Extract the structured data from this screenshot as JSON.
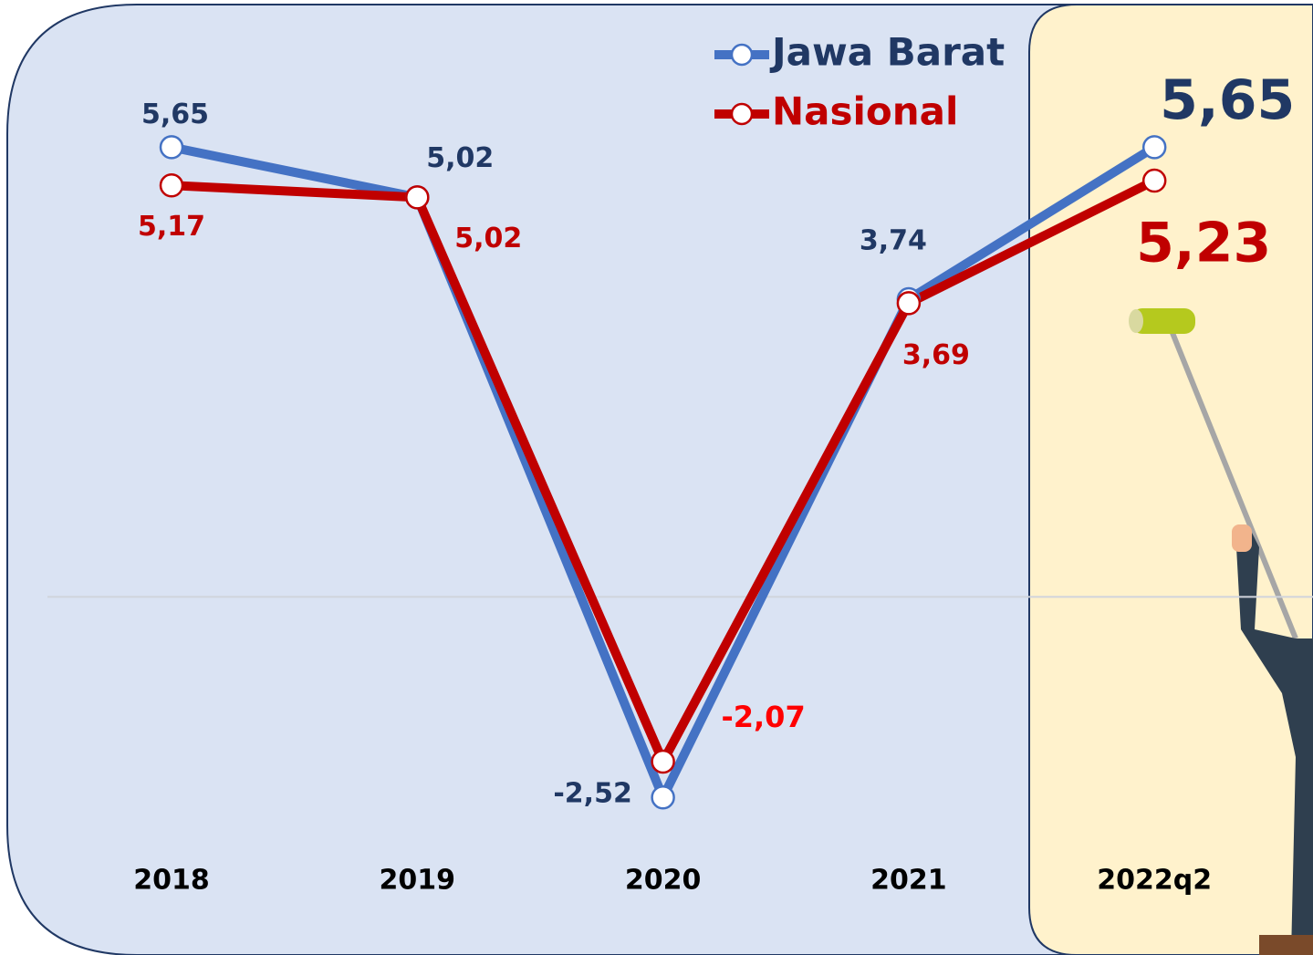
{
  "chart_data": {
    "type": "line",
    "categories": [
      "2018",
      "2019",
      "2020",
      "2021",
      "2022q2"
    ],
    "series": [
      {
        "name": "Jawa Barat",
        "color": "#4472c4",
        "values": [
          5.65,
          5.02,
          -2.52,
          3.74,
          5.65
        ],
        "value_labels": [
          "5,65",
          "5,02",
          "-2,52",
          "3,74",
          "5,65"
        ]
      },
      {
        "name": "Nasional",
        "color": "#c00000",
        "values": [
          5.17,
          5.02,
          -2.07,
          3.69,
          5.23
        ],
        "value_labels": [
          "5,17",
          "5,02",
          "-2,07",
          "3,69",
          "5,23"
        ]
      }
    ],
    "ylim": [
      -4.5,
      7.5
    ],
    "zero_line": true
  }
}
